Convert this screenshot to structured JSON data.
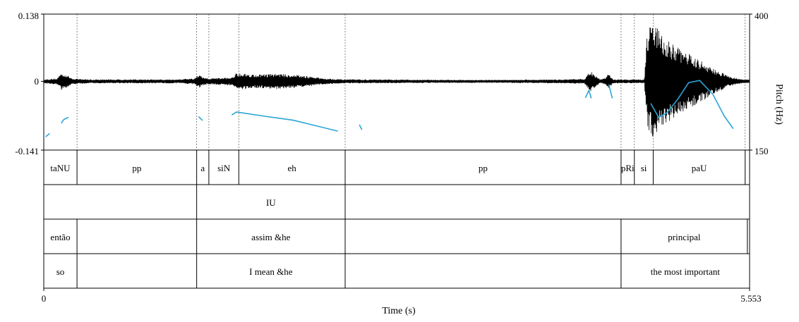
{
  "chart_data": {
    "type": "waveform-pitch-textgrid",
    "time_axis": {
      "label": "Time (s)",
      "min": 0,
      "max": 5.553,
      "min_label": "0",
      "max_label": "5.553"
    },
    "amplitude_axis": {
      "top": 0.138,
      "zero": 0,
      "bottom": -0.141,
      "top_label": "0.138",
      "zero_label": "0",
      "bottom_label": "-0.141"
    },
    "pitch_axis": {
      "label": "Pitch (Hz)",
      "min": 150,
      "max": 400,
      "min_label": "150",
      "max_label": "400"
    },
    "colors": {
      "waveform": "#000000",
      "pitch": "#2aa6d6",
      "boundary": "#555555"
    },
    "waveform_envelope": [
      [
        0.0,
        0.004
      ],
      [
        0.12,
        0.006
      ],
      [
        0.16,
        0.018
      ],
      [
        0.2,
        0.014
      ],
      [
        0.26,
        0.006
      ],
      [
        0.4,
        0.004
      ],
      [
        1.2,
        0.004
      ],
      [
        1.36,
        0.006
      ],
      [
        1.4,
        0.014
      ],
      [
        1.44,
        0.008
      ],
      [
        1.48,
        0.006
      ],
      [
        1.7,
        0.008
      ],
      [
        1.74,
        0.018
      ],
      [
        1.9,
        0.014
      ],
      [
        2.1,
        0.016
      ],
      [
        2.3,
        0.013
      ],
      [
        2.5,
        0.007
      ],
      [
        2.7,
        0.004
      ],
      [
        4.0,
        0.003
      ],
      [
        4.7,
        0.004
      ],
      [
        4.88,
        0.005
      ],
      [
        4.93,
        0.022
      ],
      [
        4.97,
        0.014
      ],
      [
        5.02,
        0.004
      ],
      [
        5.06,
        0.006
      ],
      [
        5.1,
        0.016
      ],
      [
        5.14,
        0.004
      ],
      [
        5.42,
        0.004
      ],
      [
        5.45,
        0.11
      ],
      [
        5.52,
        0.12
      ],
      [
        5.6,
        0.09
      ],
      [
        5.72,
        0.07
      ],
      [
        5.84,
        0.055
      ],
      [
        5.95,
        0.04
      ],
      [
        6.05,
        0.025
      ],
      [
        6.12,
        0.018
      ],
      [
        6.19,
        0.01
      ],
      [
        6.3,
        0.004
      ],
      [
        6.4,
        0.004
      ]
    ],
    "pitch_segments": [
      [
        [
          0.02,
          175
        ],
        [
          0.05,
          180
        ]
      ],
      [
        [
          0.16,
          200
        ],
        [
          0.18,
          206
        ],
        [
          0.22,
          210
        ]
      ],
      [
        [
          1.4,
          211
        ],
        [
          1.43,
          205
        ]
      ],
      [
        [
          1.7,
          215
        ],
        [
          1.74,
          220
        ],
        [
          2.0,
          212
        ],
        [
          2.25,
          205
        ],
        [
          2.45,
          195
        ],
        [
          2.65,
          185
        ]
      ],
      [
        [
          2.85,
          196
        ],
        [
          2.87,
          188
        ]
      ],
      [
        [
          4.89,
          247
        ],
        [
          4.92,
          260
        ],
        [
          4.94,
          246
        ]
      ],
      [
        [
          5.1,
          270
        ],
        [
          5.13,
          246
        ]
      ],
      [
        [
          5.48,
          235
        ],
        [
          5.55,
          210
        ],
        [
          5.62,
          218
        ],
        [
          5.72,
          243
        ],
        [
          5.82,
          274
        ],
        [
          5.92,
          278
        ],
        [
          6.04,
          252
        ],
        [
          6.14,
          213
        ],
        [
          6.22,
          190
        ]
      ]
    ],
    "tiers": [
      {
        "intervals": [
          {
            "start": 0.0,
            "end": 0.3,
            "text": "taNU"
          },
          {
            "start": 0.3,
            "end": 1.38,
            "text": "pp"
          },
          {
            "start": 1.38,
            "end": 1.49,
            "text": "a"
          },
          {
            "start": 1.49,
            "end": 1.76,
            "text": "siN"
          },
          {
            "start": 1.76,
            "end": 2.72,
            "text": "eh"
          },
          {
            "start": 2.72,
            "end": 5.21,
            "text": "pp"
          },
          {
            "start": 5.21,
            "end": 5.33,
            "text": "pRi"
          },
          {
            "start": 5.33,
            "end": 5.5,
            "text": "si"
          },
          {
            "start": 5.5,
            "end": 6.33,
            "text": "paU"
          },
          {
            "start": 6.33,
            "end": 6.37,
            "text": ""
          }
        ]
      },
      {
        "intervals": [
          {
            "start": 0.0,
            "end": 1.38,
            "text": ""
          },
          {
            "start": 1.38,
            "end": 2.72,
            "text": "IU"
          },
          {
            "start": 2.72,
            "end": 6.37,
            "text": ""
          }
        ]
      },
      {
        "intervals": [
          {
            "start": 0.0,
            "end": 0.3,
            "text": "então"
          },
          {
            "start": 0.3,
            "end": 1.38,
            "text": ""
          },
          {
            "start": 1.38,
            "end": 2.72,
            "text": "assim &he"
          },
          {
            "start": 2.72,
            "end": 5.21,
            "text": ""
          },
          {
            "start": 5.21,
            "end": 6.35,
            "text": "principal"
          },
          {
            "start": 6.35,
            "end": 6.37,
            "text": ""
          }
        ]
      },
      {
        "intervals": [
          {
            "start": 0.0,
            "end": 0.3,
            "text": "so"
          },
          {
            "start": 0.3,
            "end": 1.38,
            "text": ""
          },
          {
            "start": 1.38,
            "end": 2.72,
            "text": "I mean &he"
          },
          {
            "start": 2.72,
            "end": 5.21,
            "text": ""
          },
          {
            "start": 5.21,
            "end": 6.37,
            "text": "the most important"
          }
        ]
      }
    ]
  }
}
